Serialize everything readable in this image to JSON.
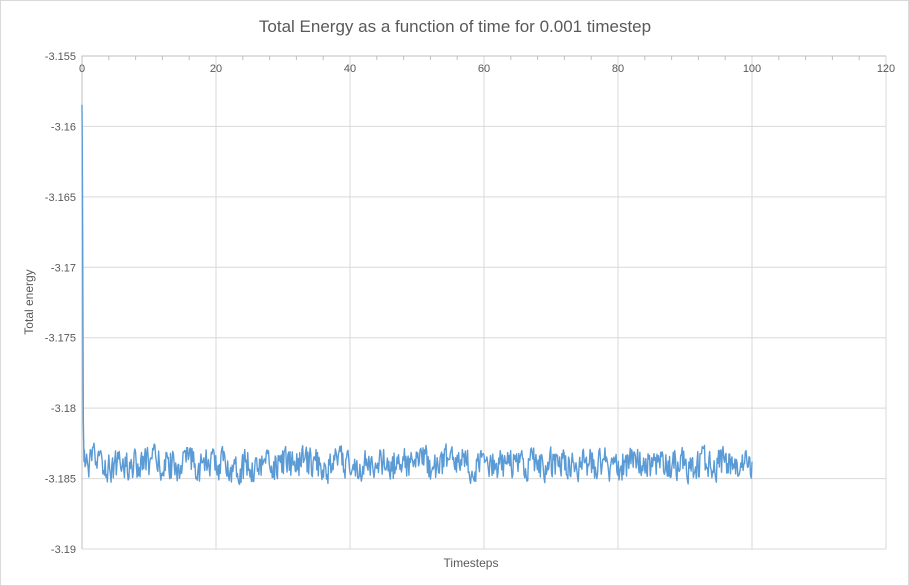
{
  "chart_data": {
    "type": "line",
    "title": "Total Energy as a function of time for 0.001 timestep",
    "xlabel": "Timesteps",
    "ylabel": "Total energy",
    "xlim": [
      0,
      120
    ],
    "ylim": [
      -3.19,
      -3.155
    ],
    "x_tick_values": [
      0,
      20,
      40,
      60,
      80,
      100,
      120
    ],
    "x_tick_labels": [
      "0",
      "20",
      "40",
      "60",
      "80",
      "100",
      "120"
    ],
    "x_minor_tick_unit": 4,
    "y_tick_values": [
      -3.155,
      -3.16,
      -3.165,
      -3.17,
      -3.175,
      -3.18,
      -3.185,
      -3.19
    ],
    "y_tick_labels": [
      "-3.155",
      "-3.16",
      "-3.165",
      "-3.17",
      "-3.175",
      "-3.18",
      "-3.185",
      "-3.19"
    ],
    "grid": true,
    "legend": "none",
    "series": [
      {
        "name": "Total energy",
        "color": "#5B9BD5",
        "line_width": 1.4,
        "x_data_range": [
          0,
          100
        ],
        "initial_transient": [
          [
            0,
            -3.1585
          ],
          [
            0.05,
            -3.162
          ],
          [
            0.1,
            -3.168
          ],
          [
            0.15,
            -3.175
          ],
          [
            0.2,
            -3.181
          ],
          [
            0.3,
            -3.1838
          ]
        ],
        "steady_state": {
          "x_start": 0.35,
          "x_end": 100,
          "n_points": 900,
          "mean": -3.184,
          "noise_amplitude": 0.0014,
          "seed": 12345
        },
        "summary": "Energy starts at -3.1585 at t=0, drops almost vertically, then fluctuates noisily around -3.184 (between about -3.1828 and -3.1858) until t=100; no data from t=100 to 120."
      }
    ],
    "colors": {
      "background": "#FFFFFF",
      "chart_border": "#D9D9D9",
      "gridline": "#D9D9D9",
      "axis_line": "#BFBFBF",
      "tick_label": "#595959",
      "axis_title": "#595959",
      "title": "#595959",
      "series": "#5B9BD5"
    }
  }
}
